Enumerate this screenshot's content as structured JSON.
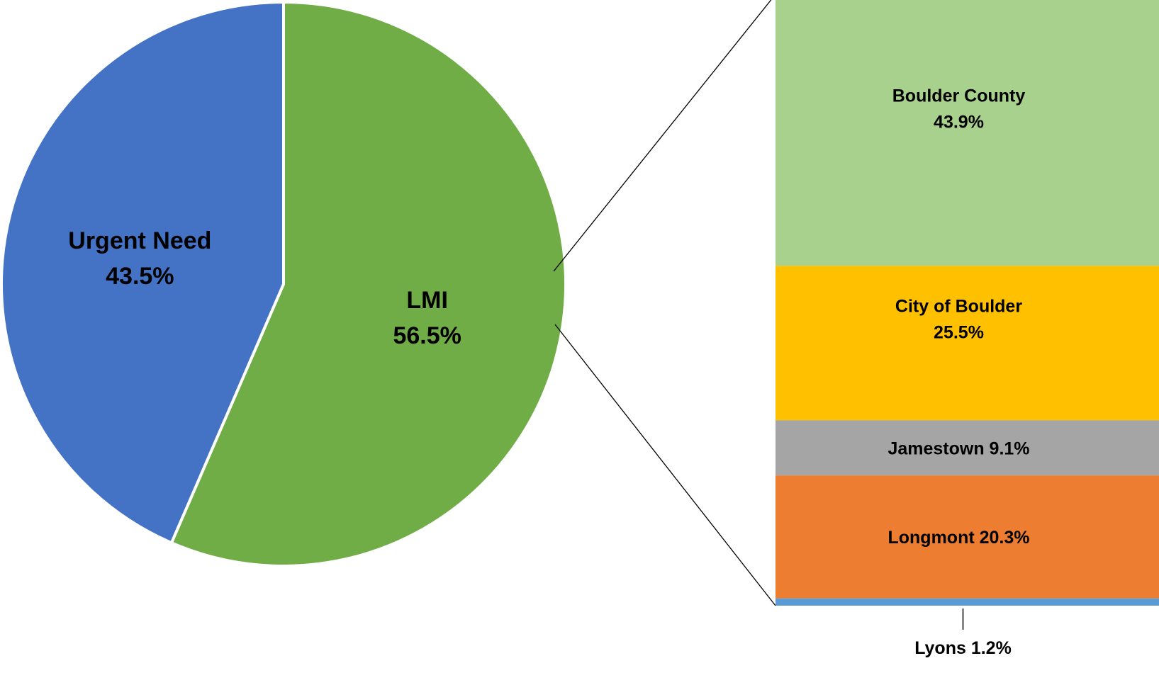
{
  "chart_data": {
    "type": "pie",
    "pie": {
      "slices": [
        {
          "name": "Urgent Need",
          "value": 43.5,
          "label_name": "Urgent Need",
          "label_value": "43.5%",
          "color": "#4472C4"
        },
        {
          "name": "LMI",
          "value": 56.5,
          "label_name": "LMI",
          "label_value": "56.5%",
          "color": "#70AD47"
        }
      ],
      "start_angle_deg": 0,
      "direction": "clockwise",
      "exploded_slice": "LMI"
    },
    "breakdown": {
      "type": "stacked-bar",
      "of": "LMI",
      "segments": [
        {
          "name": "Boulder County",
          "value": 43.9,
          "label_lines": [
            "Boulder County",
            "43.9%"
          ],
          "color": "#A9D18E"
        },
        {
          "name": "City of Boulder",
          "value": 25.5,
          "label_lines": [
            "City of Boulder",
            "25.5%"
          ],
          "color": "#FFC000"
        },
        {
          "name": "Jamestown",
          "value": 9.1,
          "label_lines": [
            "Jamestown 9.1%"
          ],
          "color": "#A5A5A5"
        },
        {
          "name": "Longmont",
          "value": 20.3,
          "label_lines": [
            "Longmont 20.3%"
          ],
          "color": "#ED7D31"
        },
        {
          "name": "Lyons",
          "value": 1.2,
          "label_lines": [
            "Lyons 1.2%"
          ],
          "color": "#5B9BD5",
          "label_position": "below"
        }
      ]
    }
  }
}
